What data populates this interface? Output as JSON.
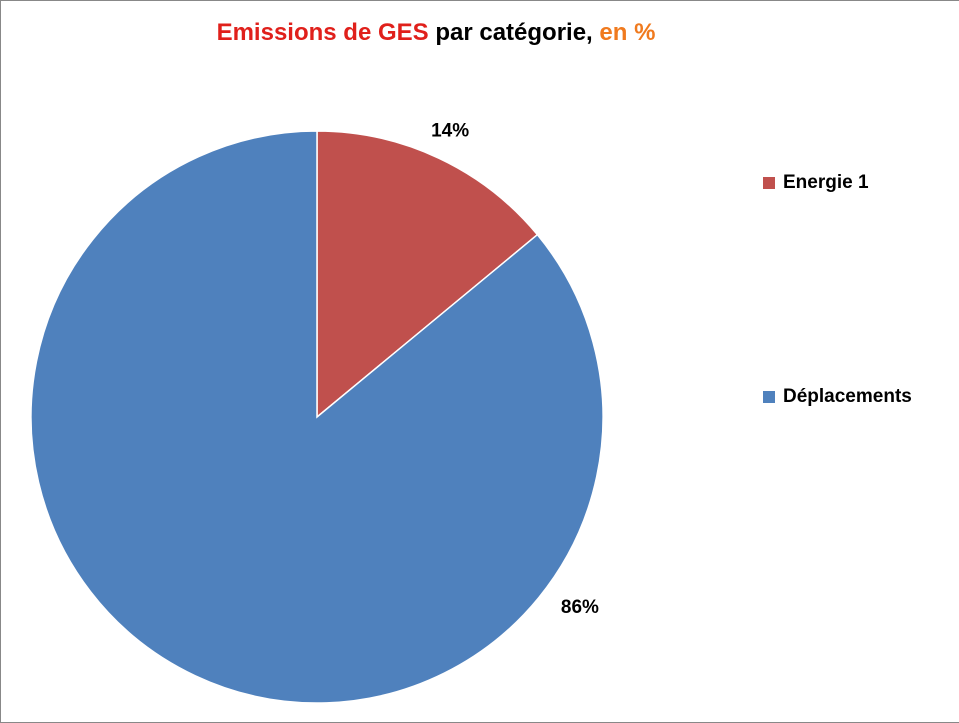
{
  "chart_data": {
    "type": "pie",
    "title": [
      {
        "text": "Emissions de GES",
        "color": "#e0201b"
      },
      {
        "text": "par catégorie,",
        "color": "#000000"
      },
      {
        "text": "en %",
        "color": "#f07a1e"
      }
    ],
    "categories": [
      "Energie 1",
      "Déplacements"
    ],
    "values": [
      14,
      86
    ],
    "value_labels": [
      "14%",
      "86%"
    ],
    "colors": [
      "#c0504d",
      "#4f81bd"
    ],
    "legend": "right"
  }
}
